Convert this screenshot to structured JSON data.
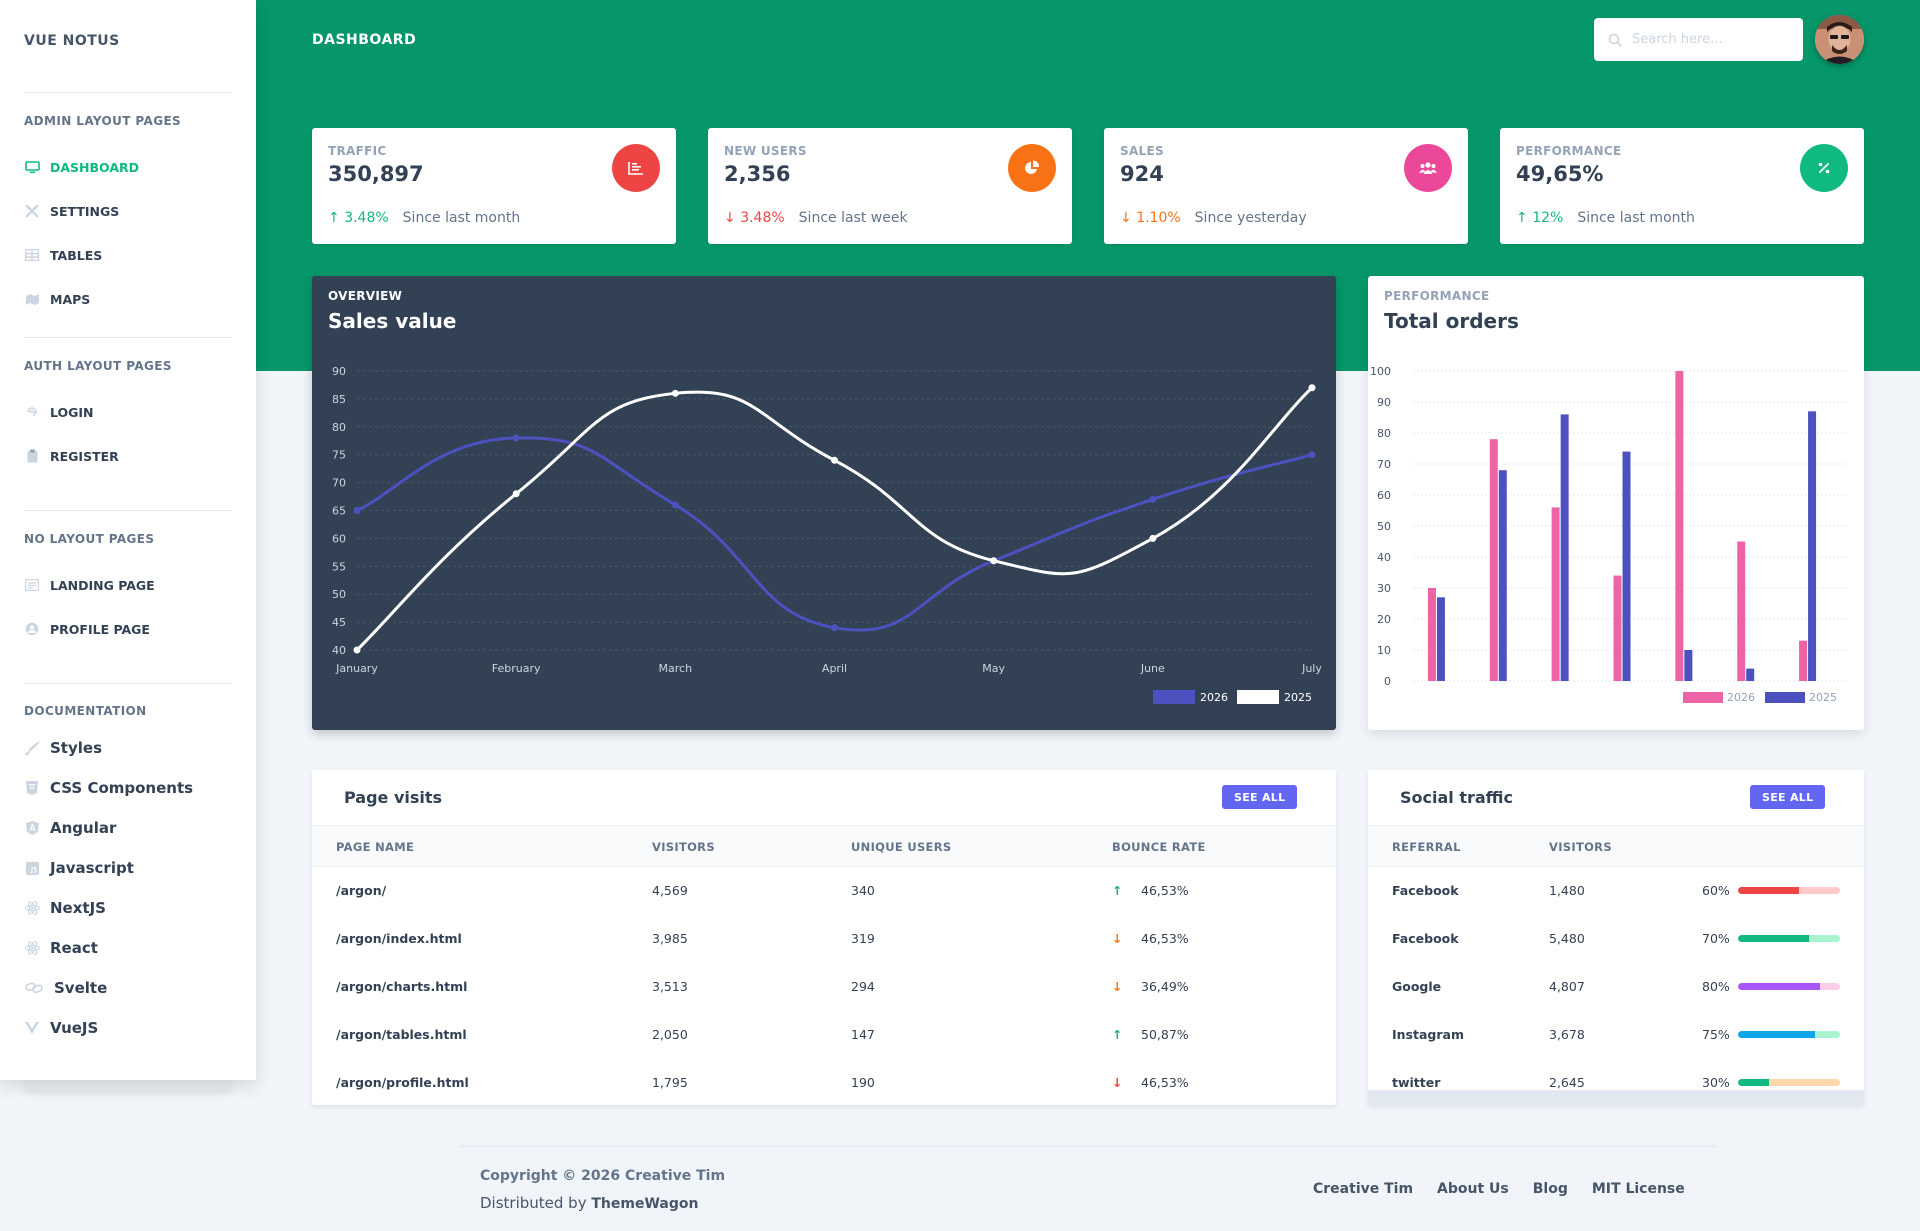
{
  "sidebar": {
    "brand": "VUE NOTUS",
    "sections": [
      {
        "title": "ADMIN LAYOUT PAGES",
        "items": [
          {
            "label": "DASHBOARD",
            "icon": "monitor-icon",
            "active": true
          },
          {
            "label": "SETTINGS",
            "icon": "tools-icon"
          },
          {
            "label": "TABLES",
            "icon": "table-icon"
          },
          {
            "label": "MAPS",
            "icon": "map-icon"
          }
        ]
      },
      {
        "title": "AUTH LAYOUT PAGES",
        "items": [
          {
            "label": "LOGIN",
            "icon": "fingerprint-icon"
          },
          {
            "label": "REGISTER",
            "icon": "clipboard-icon"
          }
        ]
      },
      {
        "title": "NO LAYOUT PAGES",
        "items": [
          {
            "label": "LANDING PAGE",
            "icon": "newspaper-icon"
          },
          {
            "label": "PROFILE PAGE",
            "icon": "user-circle-icon"
          }
        ]
      },
      {
        "title": "DOCUMENTATION",
        "items": [
          {
            "label": "Styles",
            "icon": "paint-brush-icon"
          },
          {
            "label": "CSS Components",
            "icon": "css3-icon"
          },
          {
            "label": "Angular",
            "icon": "angular-icon"
          },
          {
            "label": "Javascript",
            "icon": "js-icon"
          },
          {
            "label": "NextJS",
            "icon": "react-icon"
          },
          {
            "label": "React",
            "icon": "react-icon"
          },
          {
            "label": "Svelte",
            "icon": "link-icon"
          },
          {
            "label": "VueJS",
            "icon": "vuejs-icon"
          }
        ]
      }
    ]
  },
  "header": {
    "title": "DASHBOARD",
    "search_placeholder": "Search here..."
  },
  "stats": [
    {
      "label": "TRAFFIC",
      "value": "350,897",
      "change": "3.48%",
      "direction": "up",
      "since": "Since last month",
      "icon": "chart-bar-icon",
      "icon_color": "#ef4444",
      "change_color": "#10b981"
    },
    {
      "label": "NEW USERS",
      "value": "2,356",
      "change": "3.48%",
      "direction": "down",
      "since": "Since last week",
      "icon": "chart-pie-icon",
      "icon_color": "#f97316",
      "change_color": "#ef4444"
    },
    {
      "label": "SALES",
      "value": "924",
      "change": "1.10%",
      "direction": "down",
      "since": "Since yesterday",
      "icon": "users-icon",
      "icon_color": "#ec4899",
      "change_color": "#f97316"
    },
    {
      "label": "PERFORMANCE",
      "value": "49,65%",
      "change": "12%",
      "direction": "up",
      "since": "Since last month",
      "icon": "percent-icon",
      "icon_color": "#10b981",
      "change_color": "#10b981"
    }
  ],
  "sales_chart": {
    "subtitle": "OVERVIEW",
    "title": "Sales value"
  },
  "orders_chart": {
    "subtitle": "PERFORMANCE",
    "title": "Total orders"
  },
  "chart_data": [
    {
      "type": "line",
      "title": "Sales value",
      "x": [
        "January",
        "February",
        "March",
        "April",
        "May",
        "June",
        "July"
      ],
      "series": [
        {
          "name": "2026",
          "values": [
            65,
            78,
            66,
            44,
            56,
            67,
            75
          ],
          "color": "#4c51bf"
        },
        {
          "name": "2025",
          "values": [
            40,
            68,
            86,
            74,
            56,
            60,
            87
          ],
          "color": "#ffffff"
        }
      ],
      "ylim": [
        40,
        90
      ],
      "yticks": [
        40,
        45,
        50,
        55,
        60,
        65,
        70,
        75,
        80,
        85,
        90
      ],
      "grid": true,
      "legend": "bottom-right"
    },
    {
      "type": "bar",
      "title": "Total orders",
      "categories": [
        "",
        "",
        "",
        "",
        "",
        "",
        ""
      ],
      "series": [
        {
          "name": "2026",
          "values": [
            30,
            78,
            56,
            34,
            100,
            45,
            13
          ],
          "color": "#ed64a6"
        },
        {
          "name": "2025",
          "values": [
            27,
            68,
            86,
            74,
            10,
            4,
            87
          ],
          "color": "#4c51bf"
        }
      ],
      "ylim": [
        0,
        100
      ],
      "yticks": [
        0,
        10,
        20,
        30,
        40,
        50,
        60,
        70,
        80,
        90,
        100
      ],
      "grid": true,
      "legend": "bottom-right"
    }
  ],
  "page_visits": {
    "title": "Page visits",
    "see_all": "SEE ALL",
    "columns": [
      "PAGE NAME",
      "VISITORS",
      "UNIQUE USERS",
      "BOUNCE RATE"
    ],
    "rows": [
      {
        "page": "/argon/",
        "visitors": "4,569",
        "unique": "340",
        "bounce": "46,53%",
        "trend": "up"
      },
      {
        "page": "/argon/index.html",
        "visitors": "3,985",
        "unique": "319",
        "bounce": "46,53%",
        "trend": "down-orange"
      },
      {
        "page": "/argon/charts.html",
        "visitors": "3,513",
        "unique": "294",
        "bounce": "36,49%",
        "trend": "down-orange"
      },
      {
        "page": "/argon/tables.html",
        "visitors": "2,050",
        "unique": "147",
        "bounce": "50,87%",
        "trend": "up"
      },
      {
        "page": "/argon/profile.html",
        "visitors": "1,795",
        "unique": "190",
        "bounce": "46,53%",
        "trend": "down-red"
      }
    ]
  },
  "social_traffic": {
    "title": "Social traffic",
    "see_all": "SEE ALL",
    "columns": [
      "REFERRAL",
      "VISITORS"
    ],
    "rows": [
      {
        "referral": "Facebook",
        "visitors": "1,480",
        "percent_label": "60%",
        "percent": 60,
        "color": "#ef4444",
        "track": "#fecaca"
      },
      {
        "referral": "Facebook",
        "visitors": "5,480",
        "percent_label": "70%",
        "percent": 70,
        "color": "#10b981",
        "track": "#a7f3d0"
      },
      {
        "referral": "Google",
        "visitors": "4,807",
        "percent_label": "80%",
        "percent": 80,
        "color": "#a855f7",
        "track": "#fbcfe8"
      },
      {
        "referral": "Instagram",
        "visitors": "3,678",
        "percent_label": "75%",
        "percent": 75,
        "color": "#0ea5e9",
        "track": "#a7f3d0"
      },
      {
        "referral": "twitter",
        "visitors": "2,645",
        "percent_label": "30%",
        "percent": 30,
        "color": "#10b981",
        "track": "#fed7aa"
      }
    ]
  },
  "footer": {
    "copyright": "Copyright © 2026 Creative Tim",
    "distributed_prefix": "Distributed by",
    "distributed_by": "ThemeWagon",
    "links": [
      "Creative Tim",
      "About Us",
      "Blog",
      "MIT License"
    ]
  }
}
